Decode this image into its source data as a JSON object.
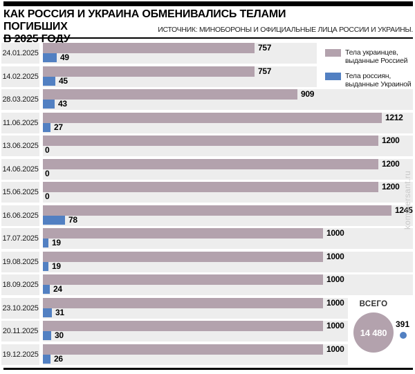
{
  "header": {
    "title_line1": "КАК РОССИЯ И УКРАИНА ОБМЕНИВАЛИСЬ ТЕЛАМИ ПОГИБШИХ",
    "title_line2": "В 2025 ГОДУ",
    "source": "ИСТОЧНИК: МИНОБОРОНЫ И ОФИЦИАЛЬНЫЕ ЛИЦА РОССИИ И УКРАИНЫ."
  },
  "legend": {
    "items": [
      {
        "line1": "Тела украинцев,",
        "line2": "выданные Россией",
        "color": "#b3a2ad"
      },
      {
        "line1": "Тела россиян,",
        "line2": "выданные Украиной",
        "color": "#5280c2"
      }
    ]
  },
  "totals": {
    "label": "ВСЕГО",
    "ukrainian_bodies_total": "14 480",
    "russian_bodies_total": "391"
  },
  "watermark": "kommersant.ru",
  "colors": {
    "ukraine_series": "#b3a2ad",
    "russia_series": "#5280c2",
    "row_background": "#ededed",
    "accent_black": "#000000"
  },
  "chart_data": {
    "type": "bar",
    "orientation": "horizontal",
    "title": "КАК РОССИЯ И УКРАИНА ОБМЕНИВАЛИСЬ ТЕЛАМИ ПОГИБШИХ В 2025 ГОДУ",
    "categories": [
      "24.01.2025",
      "14.02.2025",
      "28.03.2025",
      "11.06.2025",
      "13.06.2025",
      "14.06.2025",
      "15.06.2025",
      "16.06.2025",
      "17.07.2025",
      "19.08.2025",
      "18.09.2025",
      "23.10.2025",
      "20.11.2025",
      "19.12.2025"
    ],
    "series": [
      {
        "name": "Тела украинцев, выданные Россией",
        "color": "#b3a2ad",
        "values": [
          757,
          757,
          909,
          1212,
          1200,
          1200,
          1200,
          1245,
          1000,
          1000,
          1000,
          1000,
          1000,
          1000
        ],
        "total": 14480
      },
      {
        "name": "Тела россиян, выданные Украиной",
        "color": "#5280c2",
        "values": [
          49,
          45,
          43,
          27,
          0,
          0,
          0,
          78,
          19,
          19,
          24,
          31,
          30,
          26
        ],
        "total": 391
      }
    ],
    "xlim": [
      0,
      1322
    ],
    "value_labels": true,
    "grid": false,
    "legend_position": "top-right"
  }
}
